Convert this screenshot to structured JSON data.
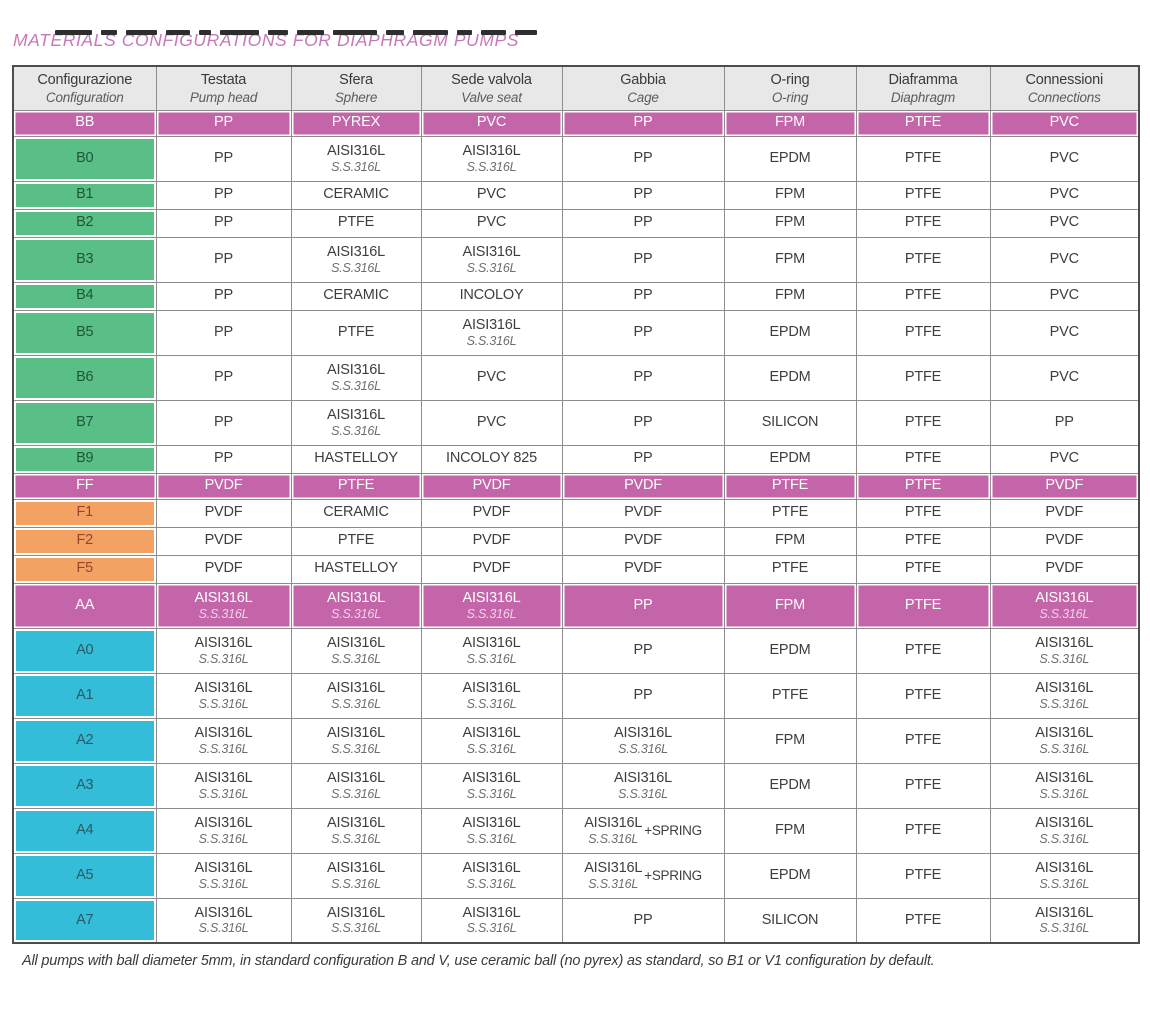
{
  "page": {
    "title": "MATERIALS CONFIGURATIONS FOR DIAPHRAGM PUMPS",
    "footnote": "All pumps with ball diameter 5mm, in standard configuration B and V, use ceramic ball (no pyrex) as standard, so B1 or V1 configuration by default.",
    "colors": {
      "title_pink": "#c878b8",
      "magenta_row": "#c464a9",
      "green_label": "#5abe87",
      "orange_label": "#f4a263",
      "cyan_label": "#33bdd8",
      "header_gray": "#e9e8e8"
    }
  },
  "table": {
    "columns": [
      {
        "it": "Configurazione",
        "en": "Configuration"
      },
      {
        "it": "Testata",
        "en": "Pump head"
      },
      {
        "it": "Sfera",
        "en": "Sphere"
      },
      {
        "it": "Sede valvola",
        "en": "Valve seat"
      },
      {
        "it": "Gabbia",
        "en": "Cage"
      },
      {
        "it": "O-ring",
        "en": "O-ring"
      },
      {
        "it": "Diaframma",
        "en": "Diaphragm"
      },
      {
        "it": "Connessioni",
        "en": "Connections"
      }
    ],
    "rows": [
      {
        "code": "BB",
        "color": "magenta",
        "cells": [
          "PP",
          "PYREX",
          "PVC",
          "PP",
          "FPM",
          "PTFE",
          "PVC"
        ]
      },
      {
        "code": "B0",
        "color": "green",
        "cells": [
          {
            "main": "PP"
          },
          {
            "main": "AISI316L",
            "sub": "S.S.316L"
          },
          {
            "main": "AISI316L",
            "sub": "S.S.316L"
          },
          "PP",
          "EPDM",
          "PTFE",
          "PVC"
        ]
      },
      {
        "code": "B1",
        "color": "green",
        "cells": [
          "PP",
          "CERAMIC",
          "PVC",
          "PP",
          "FPM",
          "PTFE",
          "PVC"
        ]
      },
      {
        "code": "B2",
        "color": "green",
        "cells": [
          "PP",
          "PTFE",
          "PVC",
          "PP",
          "FPM",
          "PTFE",
          "PVC"
        ]
      },
      {
        "code": "B3",
        "color": "green",
        "cells": [
          {
            "main": "PP"
          },
          {
            "main": "AISI316L",
            "sub": "S.S.316L"
          },
          {
            "main": "AISI316L",
            "sub": "S.S.316L"
          },
          "PP",
          "FPM",
          "PTFE",
          "PVC"
        ]
      },
      {
        "code": "B4",
        "color": "green",
        "cells": [
          "PP",
          "CERAMIC",
          "INCOLOY",
          "PP",
          "FPM",
          "PTFE",
          "PVC"
        ]
      },
      {
        "code": "B5",
        "color": "green",
        "cells": [
          {
            "main": "PP"
          },
          {
            "main": "PTFE"
          },
          {
            "main": "AISI316L",
            "sub": "S.S.316L"
          },
          "PP",
          "EPDM",
          "PTFE",
          "PVC"
        ]
      },
      {
        "code": "B6",
        "color": "green",
        "cells": [
          {
            "main": "PP"
          },
          {
            "main": "AISI316L",
            "sub": "S.S.316L"
          },
          {
            "main": "PVC"
          },
          "PP",
          "EPDM",
          "PTFE",
          "PVC"
        ]
      },
      {
        "code": "B7",
        "color": "green",
        "cells": [
          {
            "main": "PP"
          },
          {
            "main": "AISI316L",
            "sub": "S.S.316L"
          },
          {
            "main": "PVC"
          },
          "PP",
          "SILICON",
          "PTFE",
          "PP"
        ]
      },
      {
        "code": "B9",
        "color": "green",
        "cells": [
          "PP",
          "HASTELLOY",
          "INCOLOY 825",
          "PP",
          "EPDM",
          "PTFE",
          "PVC"
        ]
      },
      {
        "code": "FF",
        "color": "magenta",
        "cells": [
          "PVDF",
          "PTFE",
          "PVDF",
          "PVDF",
          "PTFE",
          "PTFE",
          "PVDF"
        ]
      },
      {
        "code": "F1",
        "color": "orange",
        "cells": [
          "PVDF",
          "CERAMIC",
          "PVDF",
          "PVDF",
          "PTFE",
          "PTFE",
          "PVDF"
        ]
      },
      {
        "code": "F2",
        "color": "orange",
        "cells": [
          "PVDF",
          "PTFE",
          "PVDF",
          "PVDF",
          "FPM",
          "PTFE",
          "PVDF"
        ]
      },
      {
        "code": "F5",
        "color": "orange",
        "cells": [
          "PVDF",
          "HASTELLOY",
          "PVDF",
          "PVDF",
          "PTFE",
          "PTFE",
          "PVDF"
        ]
      },
      {
        "code": "AA",
        "color": "magenta",
        "cells": [
          {
            "main": "AISI316L",
            "sub": "S.S.316L"
          },
          {
            "main": "AISI316L",
            "sub": "S.S.316L"
          },
          {
            "main": "AISI316L",
            "sub": "S.S.316L"
          },
          "PP",
          "FPM",
          "PTFE",
          {
            "main": "AISI316L",
            "sub": "S.S.316L"
          }
        ]
      },
      {
        "code": "A0",
        "color": "cyan",
        "cells": [
          {
            "main": "AISI316L",
            "sub": "S.S.316L"
          },
          {
            "main": "AISI316L",
            "sub": "S.S.316L"
          },
          {
            "main": "AISI316L",
            "sub": "S.S.316L"
          },
          "PP",
          "EPDM",
          "PTFE",
          {
            "main": "AISI316L",
            "sub": "S.S.316L"
          }
        ]
      },
      {
        "code": "A1",
        "color": "cyan",
        "cells": [
          {
            "main": "AISI316L",
            "sub": "S.S.316L"
          },
          {
            "main": "AISI316L",
            "sub": "S.S.316L"
          },
          {
            "main": "AISI316L",
            "sub": "S.S.316L"
          },
          "PP",
          "PTFE",
          "PTFE",
          {
            "main": "AISI316L",
            "sub": "S.S.316L"
          }
        ]
      },
      {
        "code": "A2",
        "color": "cyan",
        "cells": [
          {
            "main": "AISI316L",
            "sub": "S.S.316L"
          },
          {
            "main": "AISI316L",
            "sub": "S.S.316L"
          },
          {
            "main": "AISI316L",
            "sub": "S.S.316L"
          },
          {
            "main": "AISI316L",
            "sub": "S.S.316L"
          },
          "FPM",
          "PTFE",
          {
            "main": "AISI316L",
            "sub": "S.S.316L"
          }
        ]
      },
      {
        "code": "A3",
        "color": "cyan",
        "cells": [
          {
            "main": "AISI316L",
            "sub": "S.S.316L"
          },
          {
            "main": "AISI316L",
            "sub": "S.S.316L"
          },
          {
            "main": "AISI316L",
            "sub": "S.S.316L"
          },
          {
            "main": "AISI316L",
            "sub": "S.S.316L"
          },
          "EPDM",
          "PTFE",
          {
            "main": "AISI316L",
            "sub": "S.S.316L"
          }
        ]
      },
      {
        "code": "A4",
        "color": "cyan",
        "cells": [
          {
            "main": "AISI316L",
            "sub": "S.S.316L"
          },
          {
            "main": "AISI316L",
            "sub": "S.S.316L"
          },
          {
            "main": "AISI316L",
            "sub": "S.S.316L"
          },
          {
            "main": "AISI316L",
            "sub": "S.S.316L",
            "suffix": "+SPRING"
          },
          "FPM",
          "PTFE",
          {
            "main": "AISI316L",
            "sub": "S.S.316L"
          }
        ]
      },
      {
        "code": "A5",
        "color": "cyan",
        "cells": [
          {
            "main": "AISI316L",
            "sub": "S.S.316L"
          },
          {
            "main": "AISI316L",
            "sub": "S.S.316L"
          },
          {
            "main": "AISI316L",
            "sub": "S.S.316L"
          },
          {
            "main": "AISI316L",
            "sub": "S.S.316L",
            "suffix": "+SPRING"
          },
          "EPDM",
          "PTFE",
          {
            "main": "AISI316L",
            "sub": "S.S.316L"
          }
        ]
      },
      {
        "code": "A7",
        "color": "cyan",
        "cells": [
          {
            "main": "AISI316L",
            "sub": "S.S.316L"
          },
          {
            "main": "AISI316L",
            "sub": "S.S.316L"
          },
          {
            "main": "AISI316L",
            "sub": "S.S.316L"
          },
          "PP",
          "SILICON",
          "PTFE",
          {
            "main": "AISI316L",
            "sub": "S.S.316L"
          }
        ]
      }
    ]
  }
}
